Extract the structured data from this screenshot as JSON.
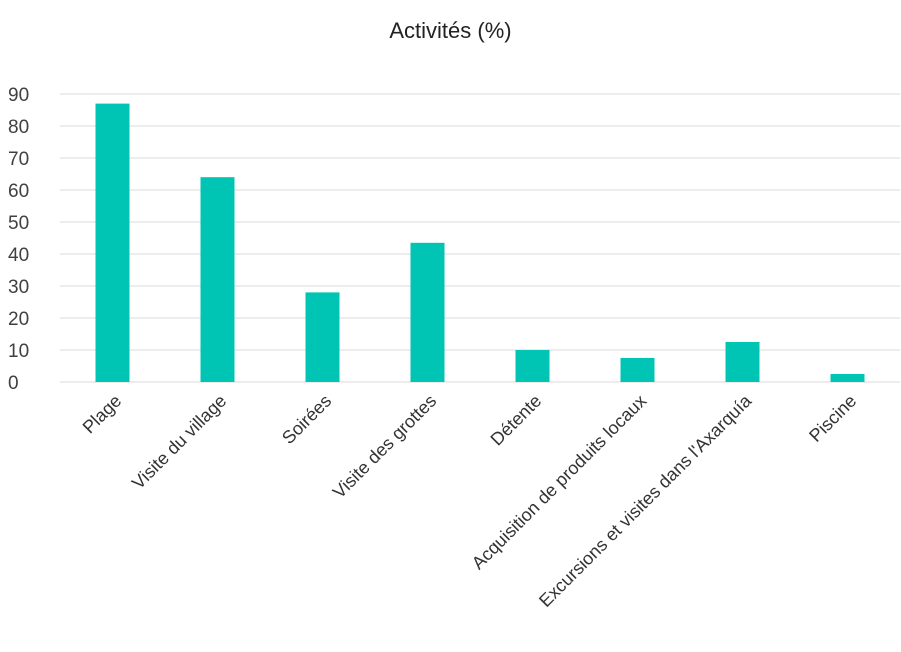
{
  "chart_data": {
    "type": "bar",
    "title": "Activités (%)",
    "categories": [
      "Plage",
      "Visite du village",
      "Soirées",
      "Visite des grottes",
      "Détente",
      "Acquisition de produits locaux",
      "Excursions et visites dans l'Axarquía",
      "Piscine"
    ],
    "values": [
      87,
      64,
      28,
      43.5,
      10,
      7.5,
      12.5,
      2.5
    ],
    "ylim": [
      0,
      90
    ],
    "yticks": [
      0,
      10,
      20,
      30,
      40,
      50,
      60,
      70,
      80,
      90
    ],
    "xlabel": "",
    "ylabel": "",
    "grid": true,
    "legend": "none",
    "bar_color": "#00C4B4",
    "grid_color": "#D9D9D9"
  }
}
